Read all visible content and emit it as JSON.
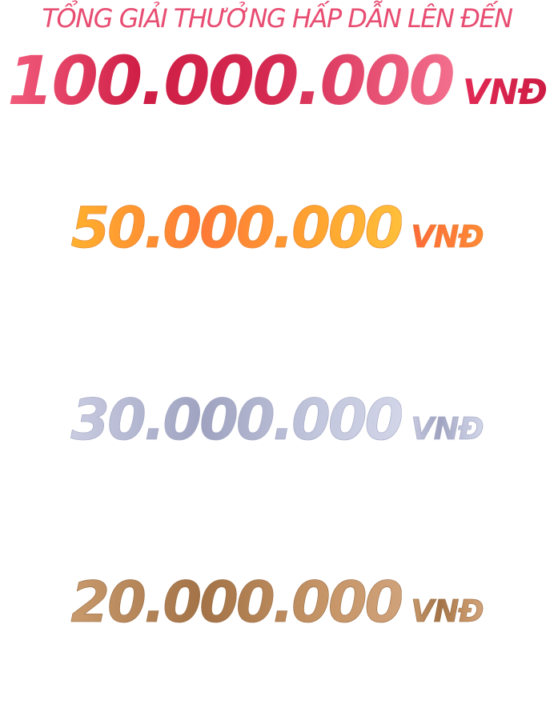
{
  "headline": "TỔNG GIẢI THƯỞNG HẤP DẪN LÊN ĐẾN",
  "grand_prize": {
    "amount": "100.000.000",
    "unit": "VNĐ",
    "color": "#d52a52"
  },
  "prizes": [
    {
      "amount": "50.000.000",
      "unit": "VNĐ",
      "color": "#ff8a35"
    },
    {
      "amount": "30.000.000",
      "unit": "VNĐ",
      "color": "#aeb1cb"
    },
    {
      "amount": "20.000.000",
      "unit": "VNĐ",
      "color": "#b3855a"
    }
  ]
}
